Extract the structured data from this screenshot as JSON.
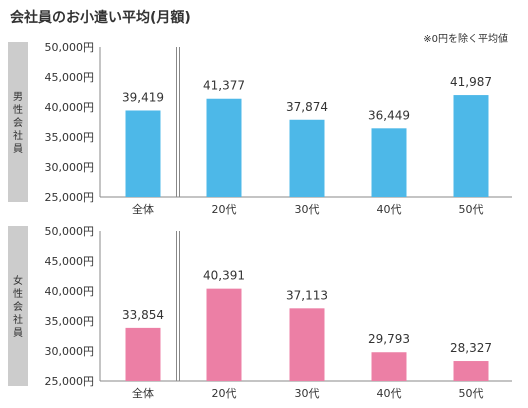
{
  "title": "会社員のお小遣い平均(月額)",
  "note": "※0円を除く平均値",
  "chart_data": [
    {
      "type": "bar",
      "panel_label": "男性会社員",
      "categories": [
        "全体",
        "20代",
        "30代",
        "40代",
        "50代"
      ],
      "values": [
        39419,
        41377,
        37874,
        36449,
        41987
      ],
      "data_labels": [
        "39,419",
        "41,377",
        "37,874",
        "36,449",
        "41,987"
      ],
      "ylim": [
        25000,
        50000
      ],
      "yticks": [
        "50,000円",
        "45,000円",
        "40,000円",
        "35,000円",
        "30,000円",
        "25,000円"
      ],
      "color": "#4db8e8",
      "grid": false
    },
    {
      "type": "bar",
      "panel_label": "女性会社員",
      "categories": [
        "全体",
        "20代",
        "30代",
        "40代",
        "50代"
      ],
      "values": [
        33854,
        40391,
        37113,
        29793,
        28327
      ],
      "data_labels": [
        "33,854",
        "40,391",
        "37,113",
        "29,793",
        "28,327"
      ],
      "ylim": [
        25000,
        50000
      ],
      "yticks": [
        "50,000円",
        "45,000円",
        "40,000円",
        "35,000円",
        "30,000円",
        "25,000円"
      ],
      "color": "#ec7fa5",
      "grid": false
    }
  ]
}
